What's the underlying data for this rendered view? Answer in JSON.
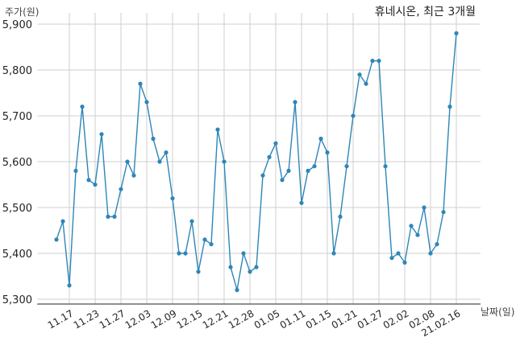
{
  "chart_data": {
    "type": "line",
    "title": "휴네시온, 최근 3개월",
    "ylabel": "주가(원)",
    "xlabel": "날짜(일)",
    "ylim": [
      5300,
      5900
    ],
    "yticks": [
      5300,
      5400,
      5500,
      5600,
      5700,
      5800,
      5900
    ],
    "ytick_labels": [
      "5,300",
      "5,400",
      "5,500",
      "5,600",
      "5,700",
      "5,800",
      "5,900"
    ],
    "grid": true,
    "x_tick_labels": [
      "11.17",
      "11.23",
      "11.27",
      "12.03",
      "12.09",
      "12.15",
      "12.21",
      "12.28",
      "01.05",
      "01.11",
      "01.15",
      "01.21",
      "01.27",
      "02.02",
      "02.08",
      "21.02.16"
    ],
    "x_tick_indices": [
      2,
      6,
      10,
      14,
      18,
      22,
      26,
      30,
      34,
      38,
      42,
      46,
      50,
      54,
      58,
      62
    ],
    "line_color": "#2e86b8",
    "series": [
      {
        "values": [
          5430,
          5470,
          5330,
          5580,
          5720,
          5560,
          5550,
          5660,
          5480,
          5480,
          5540,
          5600,
          5570,
          5770,
          5730,
          5650,
          5600,
          5620,
          5520,
          5400,
          5400,
          5470,
          5360,
          5430,
          5420,
          5670,
          5600,
          5370,
          5320,
          5400,
          5360,
          5370,
          5570,
          5610,
          5640,
          5560,
          5580,
          5730,
          5510,
          5580,
          5590,
          5650,
          5620,
          5400,
          5480,
          5590,
          5700,
          5790,
          5770,
          5820,
          5820,
          5590,
          5390,
          5400,
          5380,
          5460,
          5440,
          5500,
          5400,
          5420,
          5490,
          5720,
          5880
        ]
      }
    ]
  }
}
